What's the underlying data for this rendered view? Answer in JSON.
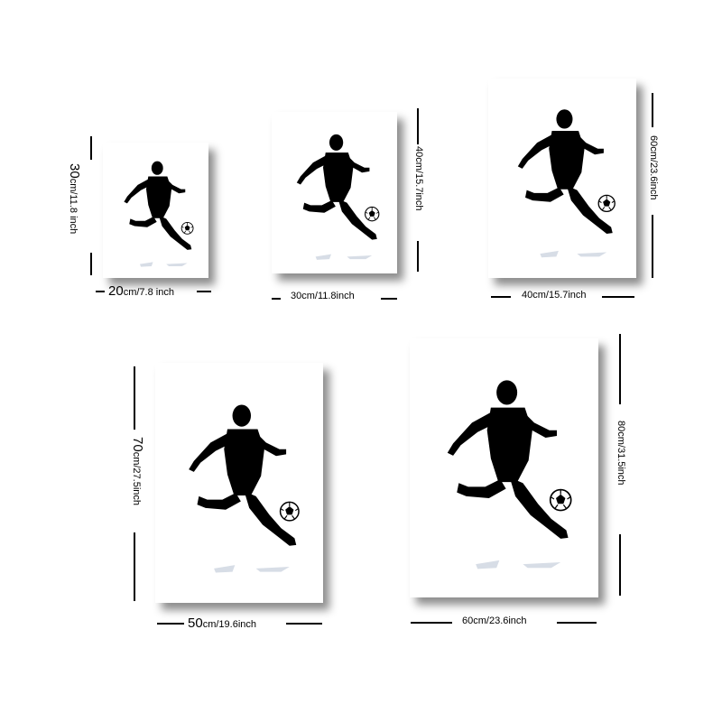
{
  "sizes": [
    {
      "width_num": "20",
      "width_unit": "cm/",
      "width_inch": "7.8 inch",
      "height_num": "30",
      "height_unit": "cm/",
      "height_inch": "11.8 inch"
    },
    {
      "width_label": "30cm/11.8inch",
      "height_label": "40cm/15.7inch"
    },
    {
      "width_label": "40cm/15.7inch",
      "height_label": "60cm/23.6inch"
    },
    {
      "width_num": "50",
      "width_unit": "cm/",
      "width_inch": "19.6inch",
      "height_num": "70",
      "height_unit": "cm/",
      "height_inch": "27.5inch"
    },
    {
      "width_label": "60cm/23.6inch",
      "height_label": "80cm/31.5inch"
    }
  ],
  "colors": {
    "silhouette": "#000000",
    "background": "#ffffff",
    "floor_reflection": "#d7dde6"
  },
  "art": {
    "icon": "soccer-player-kicking-ball-icon"
  }
}
